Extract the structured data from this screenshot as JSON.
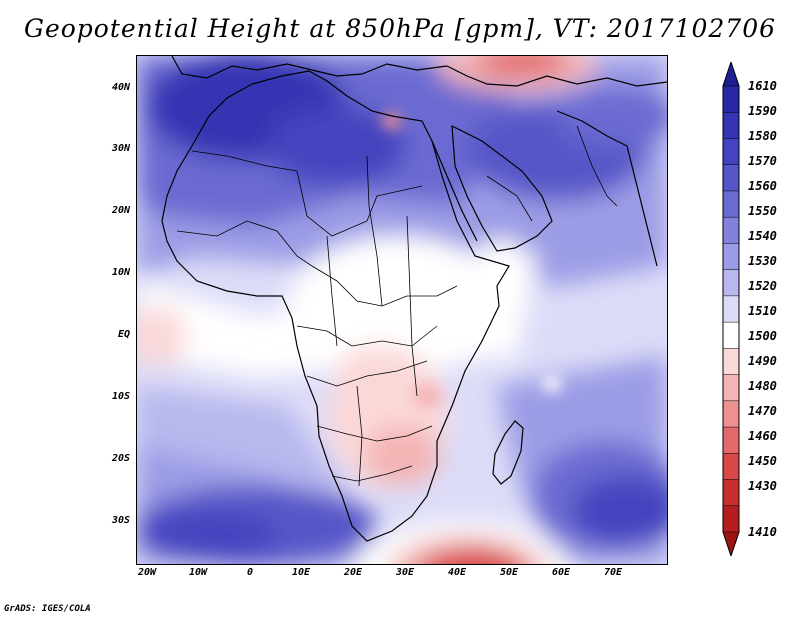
{
  "title": "Geopotential Height at 850hPa [gpm], VT: 2017102706",
  "credit": "GrADS: IGES/COLA",
  "map": {
    "lat_labels": [
      "40N",
      "30N",
      "20N",
      "10N",
      "EQ",
      "10S",
      "20S",
      "30S"
    ],
    "lon_labels": [
      "20W",
      "10W",
      "0",
      "10E",
      "20E",
      "30E",
      "40E",
      "50E",
      "60E",
      "70E"
    ]
  },
  "legend": {
    "labels": [
      "1610",
      "1590",
      "1580",
      "1570",
      "1560",
      "1550",
      "1540",
      "1530",
      "1520",
      "1510",
      "1500",
      "1490",
      "1480",
      "1470",
      "1460",
      "1450",
      "1430",
      "1410"
    ],
    "colors": [
      "#1e1e96",
      "#2828a5",
      "#3434b4",
      "#4444c0",
      "#5656c8",
      "#6a6ad2",
      "#8282dc",
      "#9c9ce6",
      "#b8b8ee",
      "#dcdcf8",
      "#ffffff",
      "#fbd8d8",
      "#f4b4b4",
      "#ec9090",
      "#e26a6a",
      "#d84848",
      "#c83030",
      "#b41e1e",
      "#9c1414"
    ]
  }
}
